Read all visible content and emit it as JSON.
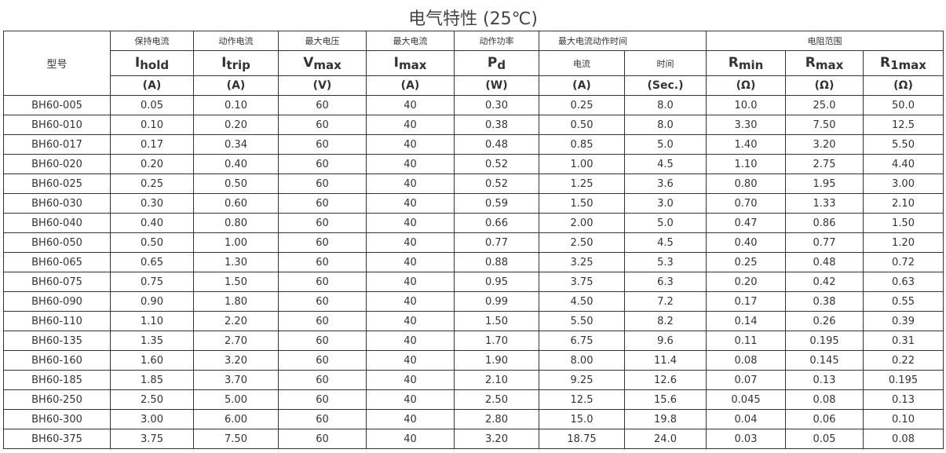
{
  "title": "电气特性 (25℃)",
  "header": {
    "model": "型号",
    "groups": [
      "保持电流",
      "动作电流",
      "最大电压",
      "最大电流",
      "动作功率",
      "最大电流动作时间",
      "电阻范围"
    ],
    "sub": [
      "电流",
      "时间"
    ],
    "symbols": [
      [
        "I",
        "hold"
      ],
      [
        "I",
        "trip"
      ],
      [
        "V",
        "max"
      ],
      [
        "I",
        "max"
      ],
      [
        "P",
        "d"
      ],
      [
        "R",
        "min"
      ],
      [
        "R",
        "max"
      ],
      [
        "R",
        "1max"
      ]
    ],
    "units": [
      "(A)",
      "(A)",
      "(V)",
      "(A)",
      "(W)",
      "(A)",
      "(Sec.)",
      "(Ω)",
      "(Ω)",
      "(Ω)"
    ]
  },
  "rows": [
    [
      "BH60-005",
      "0.05",
      "0.10",
      "60",
      "40",
      "0.30",
      "0.25",
      "8.0",
      "10.0",
      "25.0",
      "50.0"
    ],
    [
      "BH60-010",
      "0.10",
      "0.20",
      "60",
      "40",
      "0.38",
      "0.50",
      "8.0",
      "3.30",
      "7.50",
      "12.5"
    ],
    [
      "BH60-017",
      "0.17",
      "0.34",
      "60",
      "40",
      "0.48",
      "0.85",
      "5.0",
      "1.40",
      "3.20",
      "5.50"
    ],
    [
      "BH60-020",
      "0.20",
      "0.40",
      "60",
      "40",
      "0.52",
      "1.00",
      "4.5",
      "1.10",
      "2.75",
      "4.40"
    ],
    [
      "BH60-025",
      "0.25",
      "0.50",
      "60",
      "40",
      "0.52",
      "1.25",
      "3.6",
      "0.80",
      "1.95",
      "3.00"
    ],
    [
      "BH60-030",
      "0.30",
      "0.60",
      "60",
      "40",
      "0.59",
      "1.50",
      "3.0",
      "0.70",
      "1.33",
      "2.10"
    ],
    [
      "BH60-040",
      "0.40",
      "0.80",
      "60",
      "40",
      "0.66",
      "2.00",
      "5.0",
      "0.47",
      "0.86",
      "1.50"
    ],
    [
      "BH60-050",
      "0.50",
      "1.00",
      "60",
      "40",
      "0.77",
      "2.50",
      "4.5",
      "0.40",
      "0.77",
      "1.20"
    ],
    [
      "BH60-065",
      "0.65",
      "1.30",
      "60",
      "40",
      "0.88",
      "3.25",
      "5.3",
      "0.25",
      "0.48",
      "0.72"
    ],
    [
      "BH60-075",
      "0.75",
      "1.50",
      "60",
      "40",
      "0.95",
      "3.75",
      "6.3",
      "0.20",
      "0.42",
      "0.63"
    ],
    [
      "BH60-090",
      "0.90",
      "1.80",
      "60",
      "40",
      "0.99",
      "4.50",
      "7.2",
      "0.17",
      "0.38",
      "0.55"
    ],
    [
      "BH60-110",
      "1.10",
      "2.20",
      "60",
      "40",
      "1.50",
      "5.50",
      "8.2",
      "0.14",
      "0.26",
      "0.39"
    ],
    [
      "BH60-135",
      "1.35",
      "2.70",
      "60",
      "40",
      "1.70",
      "6.75",
      "9.6",
      "0.11",
      "0.195",
      "0.31"
    ],
    [
      "BH60-160",
      "1.60",
      "3.20",
      "60",
      "40",
      "1.90",
      "8.00",
      "11.4",
      "0.08",
      "0.145",
      "0.22"
    ],
    [
      "BH60-185",
      "1.85",
      "3.70",
      "60",
      "40",
      "2.10",
      "9.25",
      "12.6",
      "0.07",
      "0.13",
      "0.195"
    ],
    [
      "BH60-250",
      "2.50",
      "5.00",
      "60",
      "40",
      "2.50",
      "12.5",
      "15.6",
      "0.045",
      "0.08",
      "0.13"
    ],
    [
      "BH60-300",
      "3.00",
      "6.00",
      "60",
      "40",
      "2.80",
      "15.0",
      "19.8",
      "0.04",
      "0.06",
      "0.10"
    ],
    [
      "BH60-375",
      "3.75",
      "7.50",
      "60",
      "40",
      "3.20",
      "18.75",
      "24.0",
      "0.03",
      "0.05",
      "0.08"
    ]
  ]
}
